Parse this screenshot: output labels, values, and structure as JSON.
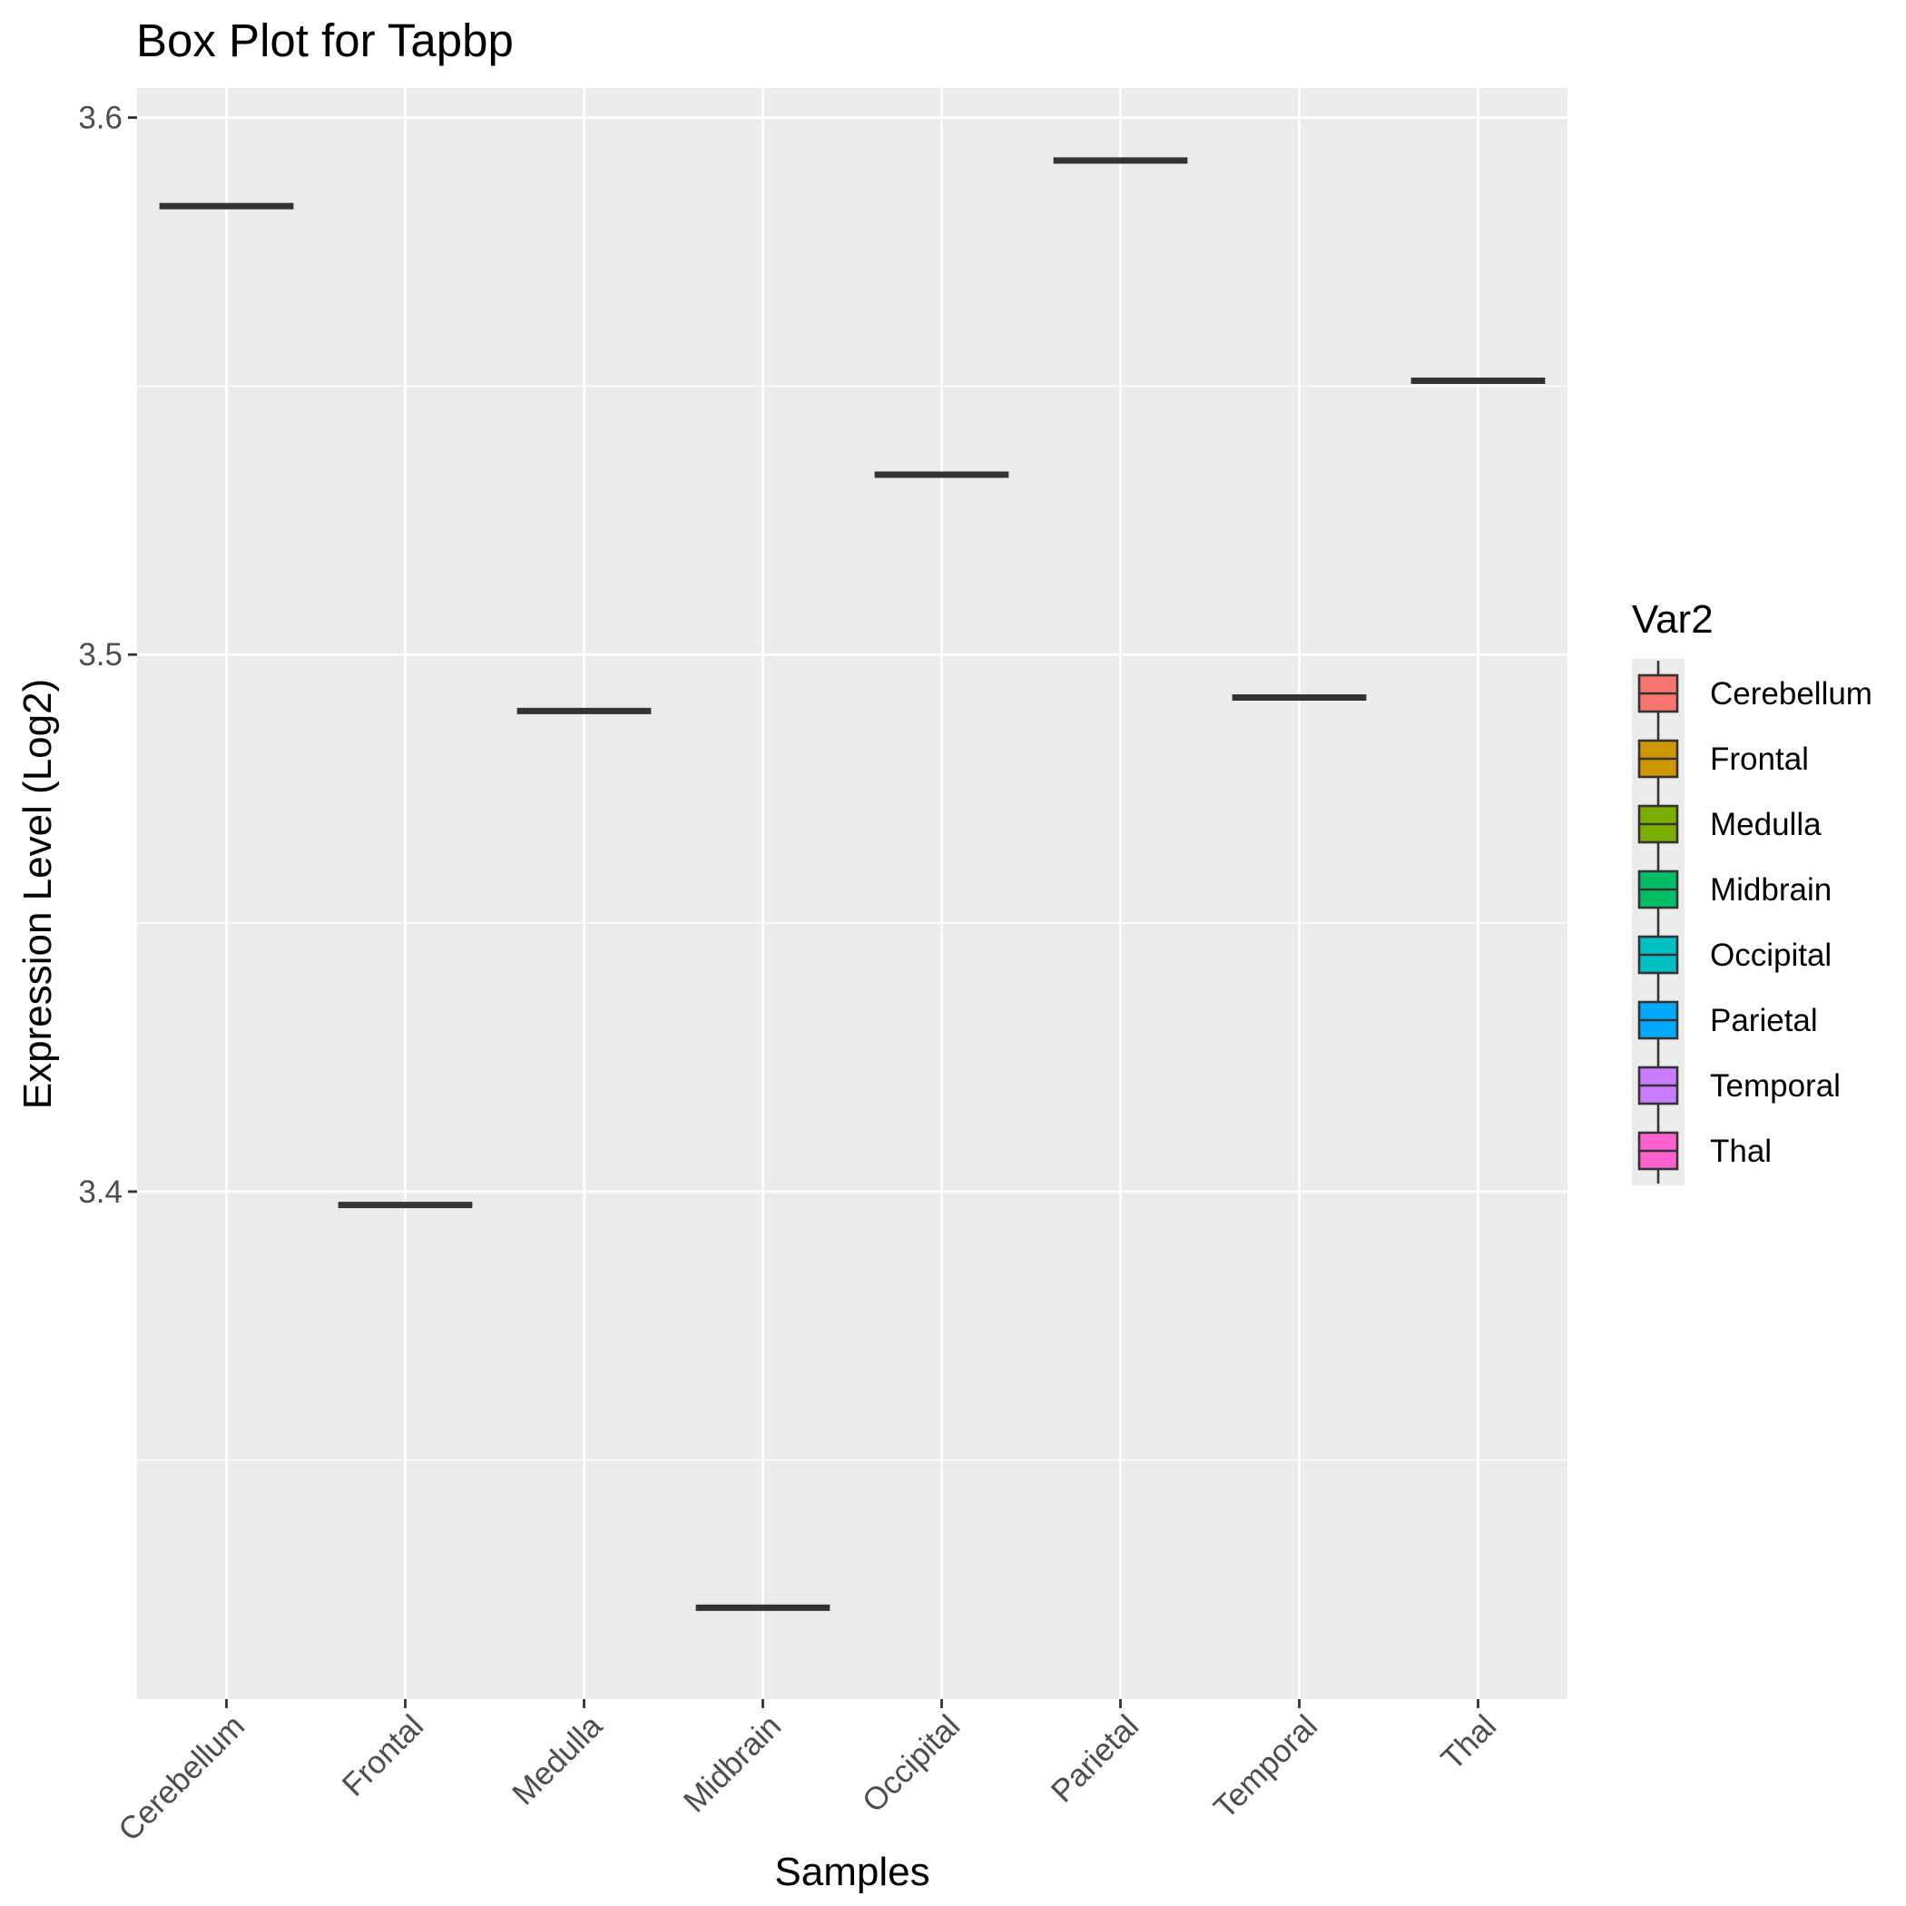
{
  "chart_data": {
    "type": "box",
    "title": "Box Plot for Tapbp",
    "xlabel": "Samples",
    "ylabel": "Expression Level (Log2)",
    "categories": [
      "Cerebellum",
      "Frontal",
      "Medulla",
      "Midbrain",
      "Occipital",
      "Parietal",
      "Temporal",
      "Thal"
    ],
    "values": [
      3.5835,
      3.3975,
      3.4895,
      3.3225,
      3.5335,
      3.592,
      3.492,
      3.551
    ],
    "ylim": [
      3.3055,
      3.6055
    ],
    "yticks": [
      3.4,
      3.5,
      3.6
    ],
    "ytick_labels": [
      "3.4",
      "3.5",
      "3.6"
    ],
    "grid": true,
    "legend": {
      "title": "Var2",
      "position": "right",
      "entries": [
        "Cerebellum",
        "Frontal",
        "Medulla",
        "Midbrain",
        "Occipital",
        "Parietal",
        "Temporal",
        "Thal"
      ]
    },
    "colors": [
      "#F8766D",
      "#CD9600",
      "#7CAE00",
      "#00BE67",
      "#00BFC4",
      "#00A9FF",
      "#C77CFF",
      "#FF61CC"
    ]
  }
}
